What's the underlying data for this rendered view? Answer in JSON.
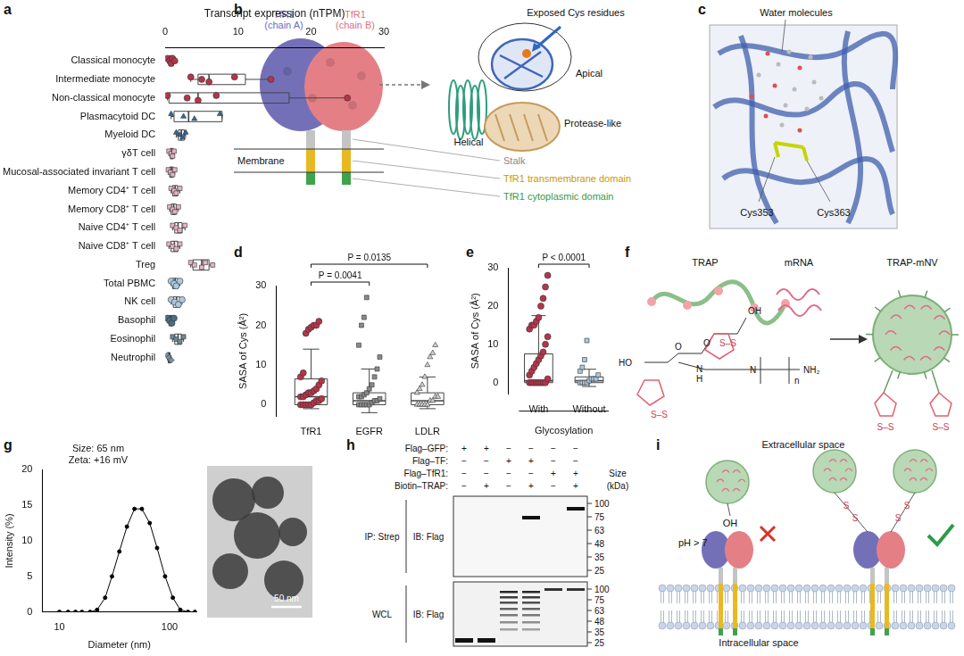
{
  "chart_data": [
    {
      "panel": "a",
      "type": "box",
      "orientation": "horizontal",
      "x_label": "Transcript expression (nTPM)",
      "xlim": [
        0,
        30
      ],
      "xticks": [
        0,
        10,
        20,
        30
      ],
      "grid": false,
      "rows": [
        {
          "name": "Classical monocyte",
          "color": "#b5354a",
          "marker": "circle",
          "values": [
            0.3,
            0.6,
            0.8,
            1.0,
            1.3
          ],
          "box": {
            "min": 0.3,
            "q1": 0.5,
            "median": 0.8,
            "q3": 1.1,
            "max": 1.3
          }
        },
        {
          "name": "Intermediate monocyte",
          "color": "#b5354a",
          "marker": "circle",
          "values": [
            3.5,
            5,
            6,
            9.5,
            14.5
          ],
          "box": {
            "min": 3.5,
            "q1": 4.5,
            "median": 6,
            "q3": 11,
            "max": 14.5
          }
        },
        {
          "name": "Non-classical monocyte",
          "color": "#b5354a",
          "marker": "circle",
          "values": [
            0.3,
            3,
            4.5,
            7,
            25
          ],
          "box": {
            "min": 0.3,
            "q1": 0.5,
            "median": 4.5,
            "q3": 17,
            "max": 25
          }
        },
        {
          "name": "Plasmacytoid DC",
          "color": "#2d6aa0",
          "marker": "triangle",
          "values": [
            0.8,
            2.5,
            4,
            7.5
          ],
          "box": {
            "min": 0.8,
            "q1": 1.2,
            "median": 3.2,
            "q3": 7.8,
            "max": 7.8
          }
        },
        {
          "name": "Myeloid DC",
          "color": "#2d6aa0",
          "marker": "triangle",
          "values": [
            1.5,
            2,
            2.4,
            2.8
          ],
          "box": {
            "min": 1.5,
            "q1": 1.8,
            "median": 2.2,
            "q3": 2.6,
            "max": 2.8
          }
        },
        {
          "name": "γδT cell",
          "color": "#e6b3c1",
          "marker": "square",
          "values": [
            0.5,
            0.8,
            1,
            1.2
          ],
          "box": {
            "min": 0.5,
            "q1": 0.7,
            "median": 0.9,
            "q3": 1.1,
            "max": 1.2
          }
        },
        {
          "name": "Mucosal-associated invariant T cell",
          "color": "#e6b3c1",
          "marker": "square",
          "values": [
            0.4,
            0.7,
            1,
            1.3
          ],
          "box": {
            "min": 0.4,
            "q1": 0.6,
            "median": 0.85,
            "q3": 1.1,
            "max": 1.3
          }
        },
        {
          "name": "Memory CD4⁺ T cell",
          "color": "#e6b3c1",
          "marker": "square",
          "values": [
            0.8,
            1.2,
            1.5,
            2
          ],
          "box": {
            "min": 0.8,
            "q1": 1,
            "median": 1.35,
            "q3": 1.7,
            "max": 2
          }
        },
        {
          "name": "Memory CD8⁺ T cell",
          "color": "#e6b3c1",
          "marker": "square",
          "values": [
            0.6,
            1,
            1.3,
            1.8
          ],
          "box": {
            "min": 0.6,
            "q1": 0.8,
            "median": 1.15,
            "q3": 1.5,
            "max": 1.8
          }
        },
        {
          "name": "Naive CD4⁺ T cell",
          "color": "#e6b3c1",
          "marker": "square",
          "values": [
            1,
            1.5,
            2,
            2.7
          ],
          "box": {
            "min": 1,
            "q1": 1.3,
            "median": 1.75,
            "q3": 2.3,
            "max": 2.7
          }
        },
        {
          "name": "Naive CD8⁺ T cell",
          "color": "#e6b3c1",
          "marker": "square",
          "values": [
            0.5,
            1,
            1.5,
            2
          ],
          "box": {
            "min": 0.5,
            "q1": 0.8,
            "median": 1.25,
            "q3": 1.7,
            "max": 2
          }
        },
        {
          "name": "Treg",
          "color": "#e6b3c1",
          "marker": "square",
          "values": [
            3.5,
            4,
            5,
            5.5,
            6.5
          ],
          "box": {
            "min": 3.5,
            "q1": 3.8,
            "median": 5,
            "q3": 6,
            "max": 6.5
          }
        },
        {
          "name": "Total PBMC",
          "color": "#a9c9e2",
          "marker": "circle",
          "values": [
            0.8,
            1.2,
            1.5,
            2
          ],
          "box": {
            "min": 0.8,
            "q1": 1,
            "median": 1.35,
            "q3": 1.7,
            "max": 2
          }
        },
        {
          "name": "NK cell",
          "color": "#a9c9e2",
          "marker": "circle",
          "values": [
            0.8,
            1.3,
            1.8,
            2.3
          ],
          "box": {
            "min": 0.8,
            "q1": 1.1,
            "median": 1.55,
            "q3": 2,
            "max": 2.3
          }
        },
        {
          "name": "Basophil",
          "color": "#4d6f80",
          "marker": "circle",
          "values": [
            0.3,
            0.6,
            0.9,
            1.2
          ],
          "box": {
            "min": 0.3,
            "q1": 0.5,
            "median": 0.75,
            "q3": 1,
            "max": 1.2
          }
        },
        {
          "name": "Eosinophil",
          "color": "#6f8a99",
          "marker": "square",
          "values": [
            1,
            1.5,
            2,
            2.5
          ],
          "box": {
            "min": 1,
            "q1": 1.3,
            "median": 1.75,
            "q3": 2.2,
            "max": 2.5
          }
        },
        {
          "name": "Neutrophil",
          "color": "#7d8f9b",
          "marker": "diamond",
          "values": [
            0.3,
            0.5,
            0.8
          ],
          "box": {
            "min": 0.3,
            "q1": 0.4,
            "median": 0.5,
            "q3": 0.65,
            "max": 0.8
          }
        }
      ]
    },
    {
      "panel": "d",
      "type": "box",
      "y_label": "SASA of Cys (Å²)",
      "ylim": [
        -3,
        30
      ],
      "yticks": [
        0,
        10,
        20,
        30
      ],
      "grid": false,
      "rows": [
        {
          "name": "TfR1",
          "color": "#b5354a",
          "marker": "circle",
          "values": [
            0,
            0,
            0,
            0,
            0,
            0.5,
            1,
            1,
            1.5,
            2,
            2,
            2.5,
            3,
            3,
            3.5,
            4,
            5,
            6,
            7,
            8,
            18,
            19,
            19.5,
            20,
            20,
            21
          ],
          "box": {
            "min": -1,
            "q1": 0,
            "median": 2,
            "q3": 6.5,
            "max": 14
          }
        },
        {
          "name": "EGFR",
          "color": "#8a8a8a",
          "marker": "square",
          "values": [
            0,
            0,
            0,
            0,
            0,
            0.5,
            1,
            1,
            1.5,
            2,
            2,
            2.5,
            3,
            4,
            5,
            7,
            9,
            12,
            15,
            20,
            22,
            27
          ],
          "box": {
            "min": -2,
            "q1": 0,
            "median": 1,
            "q3": 3,
            "max": 9
          }
        },
        {
          "name": "LDLR",
          "color": "#d0d0d0",
          "marker": "triangle",
          "values": [
            0,
            0,
            0,
            0,
            0,
            1,
            1,
            2,
            2,
            3,
            4,
            5,
            7,
            10,
            12,
            13,
            15
          ],
          "box": {
            "min": -1,
            "q1": 0,
            "median": 1,
            "q3": 3,
            "max": 7
          }
        }
      ],
      "annotations": [
        {
          "between": [
            "TfR1",
            "EGFR"
          ],
          "text": "P = 0.0041"
        },
        {
          "between": [
            "TfR1",
            "LDLR"
          ],
          "text": "P = 0.0135"
        }
      ]
    },
    {
      "panel": "e",
      "type": "box",
      "x_label": "Glycosylation",
      "y_label": "SASA of Cys (Å²)",
      "ylim": [
        -3,
        30
      ],
      "yticks": [
        0,
        10,
        20,
        30
      ],
      "grid": false,
      "rows": [
        {
          "name": "With",
          "color": "#b5354a",
          "marker": "circle",
          "values": [
            0,
            0,
            0,
            0,
            0,
            0,
            0,
            0,
            1,
            2,
            3,
            4,
            5,
            6,
            7,
            8,
            10,
            12,
            14,
            15,
            15,
            16,
            17,
            20,
            22,
            25,
            28
          ],
          "box": {
            "min": 0,
            "q1": 0,
            "median": 0.5,
            "q3": 7.5,
            "max": 17.5
          }
        },
        {
          "name": "Without",
          "color": "#a9c9e2",
          "marker": "square",
          "values": [
            0,
            0,
            0,
            0,
            0.5,
            1,
            1,
            1,
            2,
            3,
            4,
            6,
            11
          ],
          "box": {
            "min": -1,
            "q1": 0,
            "median": 0.5,
            "q3": 1.5,
            "max": 3.5
          }
        }
      ],
      "annotations": [
        {
          "between": [
            "With",
            "Without"
          ],
          "text": "P < 0.0001"
        }
      ]
    },
    {
      "panel": "g",
      "type": "line",
      "title": [
        "Size: 65 nm",
        "Zeta: +16 mV"
      ],
      "x_label": "Diameter (nm)",
      "y_label": "Intensity (%)",
      "log": "x",
      "x": [
        10,
        12,
        14,
        16,
        19,
        22,
        26,
        30,
        35,
        41,
        48,
        56,
        66,
        77,
        91,
        107,
        125,
        147,
        170
      ],
      "values": [
        0,
        0,
        0,
        0,
        0,
        0.3,
        2,
        5,
        8.5,
        12,
        14.5,
        14.5,
        12.5,
        9,
        5,
        2,
        0.3,
        0,
        0
      ],
      "color": "#000000",
      "marker": "circle",
      "xlim": [
        7,
        175
      ],
      "xticks": [
        10,
        100
      ],
      "ylim": [
        0,
        20
      ],
      "yticks": [
        0,
        5,
        10,
        15,
        20
      ],
      "grid": false,
      "scale_bar": "50 nm"
    }
  ],
  "diagrams": {
    "b": {
      "label": "b",
      "chain_a": [
        "TfR1",
        "(chain A)"
      ],
      "chain_b": [
        "TfR1",
        "(chain B)"
      ],
      "callout": "Exposed Cys residues",
      "domains": [
        "Apical",
        "Protease-like",
        "Helical"
      ],
      "membrane": "Membrane",
      "parts": [
        "Stalk",
        "TfR1 transmembrane domain",
        "TfR1 cytoplasmic domain"
      ]
    },
    "c": {
      "label": "c",
      "callout": "Water molecules",
      "residues": [
        "Cys353",
        "Cys363"
      ]
    },
    "f": {
      "label": "f",
      "steps": [
        "TRAP",
        "mRNA",
        "TRAP-mNV"
      ],
      "structure_labels": [
        "OH",
        "O",
        "S–S",
        "HO",
        "O",
        "H",
        "N",
        "N",
        "n",
        "NH₂",
        "S–S"
      ],
      "particle_labels": [
        "S–S",
        "S–S"
      ]
    },
    "h": {
      "label": "h",
      "rows": [
        {
          "name": "Flag–GFP:",
          "signs": [
            "+",
            "+",
            "−",
            "−",
            "−",
            "−"
          ]
        },
        {
          "name": "Flag–TF:",
          "signs": [
            "−",
            "−",
            "+",
            "+",
            "−",
            "−"
          ]
        },
        {
          "name": "Flag–TfR1:",
          "signs": [
            "−",
            "−",
            "−",
            "−",
            "+",
            "+"
          ]
        },
        {
          "name": "Biotin–TRAP:",
          "signs": [
            "−",
            "+",
            "−",
            "+",
            "−",
            "+"
          ]
        }
      ],
      "size_header": [
        "Size",
        "(kDa)"
      ],
      "blots": [
        {
          "left": "IP: Strep",
          "ib": "IB: Flag",
          "markers": [
            100,
            75,
            63,
            48,
            35,
            25
          ]
        },
        {
          "left": "WCL",
          "ib": "IB: Flag",
          "markers": [
            100,
            75,
            63,
            48,
            35,
            25
          ]
        }
      ]
    },
    "i": {
      "label": "i",
      "top": "Extracellular space",
      "bottom": "Intracellular space",
      "condition": "pH > 7",
      "left_group": "OH",
      "linker": [
        "S",
        "S",
        "S",
        "S"
      ]
    }
  }
}
